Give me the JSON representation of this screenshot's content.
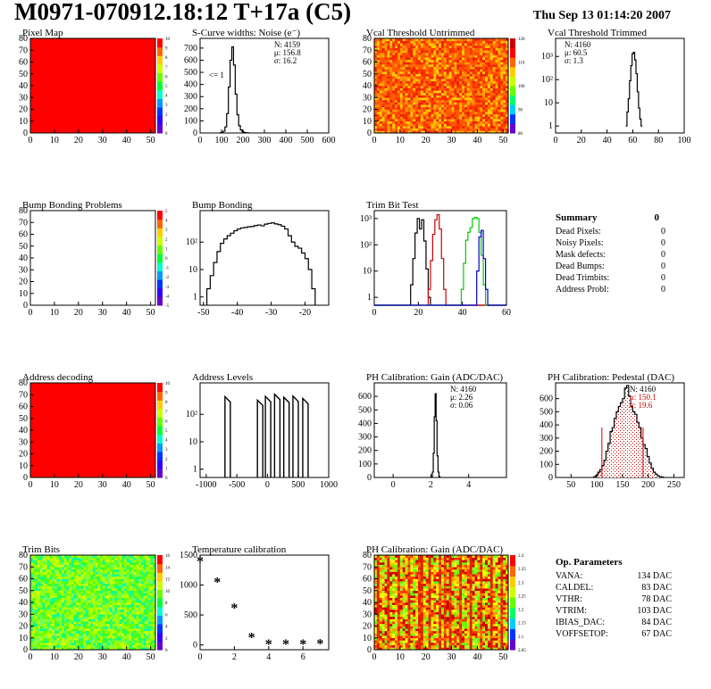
{
  "header": {
    "title": "M0971-070912.18:12 T+17a (C5)",
    "date": "Thu Sep 13 01:14:20 2007"
  },
  "chart_data": [
    {
      "id": "p1",
      "type": "heatmap",
      "title": "Pixel Map",
      "x_ticks": [
        "0",
        "10",
        "20",
        "30",
        "40",
        "50"
      ],
      "y_ticks": [
        "0",
        "10",
        "20",
        "30",
        "40",
        "50",
        "60",
        "70",
        "80"
      ],
      "color_scale": [
        "0",
        "1",
        "2",
        "3",
        "4",
        "5",
        "6",
        "7",
        "8",
        "9",
        "10"
      ],
      "fill_color": "#ff0000",
      "uniform_value": 10
    },
    {
      "id": "p2",
      "type": "bar",
      "title": "S-Curve widths: Noise (e⁻)",
      "x_ticks": [
        "0",
        "100",
        "200",
        "300",
        "400",
        "500",
        "600"
      ],
      "y_ticks": [
        "0",
        "100",
        "200",
        "300",
        "400",
        "500",
        "600",
        "700"
      ],
      "xlim": [
        0,
        600
      ],
      "ylim": [
        0,
        780
      ],
      "stats": [
        "N: 4159",
        "μ: 156.8",
        "σ: 16.2"
      ],
      "annotation": "<= 1",
      "bin_width": 8,
      "bins_x": [
        96,
        104,
        112,
        120,
        128,
        136,
        144,
        152,
        160,
        168,
        176,
        184,
        192,
        200,
        208,
        216,
        224
      ],
      "bins_y": [
        2,
        6,
        15,
        50,
        160,
        380,
        600,
        710,
        560,
        320,
        150,
        60,
        25,
        10,
        4,
        2,
        1
      ]
    },
    {
      "id": "p3",
      "type": "heatmap",
      "title": "Vcal Threshold Untrimmed",
      "x_ticks": [
        "0",
        "10",
        "20",
        "30",
        "40",
        "50"
      ],
      "y_ticks": [
        "0",
        "10",
        "20",
        "30",
        "40",
        "50",
        "60",
        "70",
        "80"
      ],
      "color_scale": [
        "80",
        "90",
        "100",
        "110",
        "120"
      ]
    },
    {
      "id": "p4",
      "type": "line",
      "log_y": true,
      "title": "Vcal Threshold Trimmed",
      "x_ticks": [
        "0",
        "20",
        "40",
        "60",
        "80",
        "100"
      ],
      "y_ticks": [
        "1",
        "10",
        "10²",
        "10³"
      ],
      "xlim": [
        0,
        100
      ],
      "stats": [
        "N: 4160",
        "μ: 60.5",
        "σ: 1.3"
      ],
      "bins_x": [
        55,
        56,
        57,
        58,
        59,
        60,
        61,
        62,
        63,
        64,
        65,
        66,
        67
      ],
      "bins_y": [
        1,
        4,
        15,
        90,
        400,
        1300,
        1500,
        700,
        180,
        30,
        6,
        2,
        1
      ]
    },
    {
      "id": "p5",
      "type": "heatmap",
      "title": "Bump Bonding Problems",
      "x_ticks": [
        "0",
        "10",
        "20",
        "30",
        "40",
        "50"
      ],
      "y_ticks": [
        "0",
        "10",
        "20",
        "30",
        "40",
        "50",
        "60",
        "70",
        "80"
      ],
      "color_scale": [
        "-5",
        "-4",
        "-3",
        "-2",
        "-1",
        "0",
        "1",
        "2",
        "3",
        "4",
        "5"
      ],
      "uniform_value": 0
    },
    {
      "id": "p6",
      "type": "line",
      "log_y": true,
      "title": "Bump Bonding",
      "x_ticks": [
        "-50",
        "-40",
        "-30",
        "-20"
      ],
      "y_ticks": [
        "1",
        "10",
        "10²"
      ],
      "xlim": [
        -51,
        -13
      ],
      "bins_x": [
        -48.5,
        -47.5,
        -46.5,
        -45.5,
        -44.5,
        -43.5,
        -42.5,
        -41.5,
        -40.5,
        -39.5,
        -38.5,
        -37.5,
        -36.5,
        -35.5,
        -34.5,
        -33.5,
        -32.5,
        -31.5,
        -30.5,
        -29.5,
        -28.5,
        -27.5,
        -26.5,
        -25.5,
        -24.5,
        -23.5,
        -22.5,
        -21.5,
        -20.5,
        -19.5,
        -18.5,
        -17.5
      ],
      "bins_y": [
        2,
        6,
        18,
        45,
        90,
        130,
        170,
        210,
        260,
        300,
        330,
        340,
        360,
        370,
        400,
        420,
        390,
        450,
        480,
        500,
        460,
        430,
        380,
        300,
        170,
        100,
        70,
        60,
        40,
        25,
        10,
        2
      ]
    },
    {
      "id": "p7",
      "type": "line",
      "log_y": true,
      "title": "Trim Bit Test",
      "x_ticks": [
        "0",
        "20",
        "40",
        "60"
      ],
      "y_ticks": [
        "1",
        "10",
        "10²",
        "10³"
      ],
      "xlim": [
        0,
        60
      ],
      "series": [
        {
          "color": "#000000",
          "x": [
            17,
            18,
            19,
            20,
            21,
            22,
            23,
            24,
            25
          ],
          "y": [
            3,
            30,
            280,
            1000,
            400,
            900,
            140,
            12,
            1
          ]
        },
        {
          "color": "#cc0000",
          "x": [
            25,
            26,
            27,
            28,
            29,
            30,
            31,
            32
          ],
          "y": [
            2,
            25,
            250,
            900,
            1400,
            400,
            30,
            2
          ]
        },
        {
          "color": "#00cc00",
          "x": [
            40,
            41,
            42,
            43,
            44,
            45,
            46,
            47,
            48,
            49,
            50
          ],
          "y": [
            2,
            20,
            150,
            300,
            450,
            1000,
            1100,
            1000,
            300,
            40,
            3
          ]
        },
        {
          "color": "#0000cc",
          "x": [
            47,
            48,
            49,
            50,
            51
          ],
          "y": [
            10,
            200,
            350,
            30,
            2
          ]
        }
      ]
    },
    {
      "id": "p8",
      "type": "line",
      "log_y": true,
      "title": "Address Levels",
      "x_ticks": [
        "-1000",
        "-500",
        "0",
        "500",
        "1000"
      ],
      "y_ticks": [
        "1",
        "10",
        "10²"
      ],
      "xlim": [
        -1100,
        1000
      ],
      "peaks_x": [
        -650,
        -120,
        10,
        160,
        310,
        460,
        620
      ],
      "peaks_y": [
        440,
        330,
        450,
        540,
        420,
        460,
        380
      ]
    },
    {
      "id": "p9",
      "type": "bar",
      "title": "PH Calibration: Gain (ADC/DAC)",
      "x_ticks": [
        "0",
        "2",
        "4"
      ],
      "y_ticks": [
        "0",
        "100",
        "200",
        "300",
        "400",
        "500",
        "600"
      ],
      "xlim": [
        -1,
        6
      ],
      "ylim": [
        0,
        700
      ],
      "stats": [
        "N: 4160",
        "μ: 2.26",
        "σ: 0.06"
      ],
      "bin_width": 0.05,
      "bins_x": [
        2.05,
        2.1,
        2.15,
        2.2,
        2.25,
        2.3,
        2.35,
        2.4,
        2.45
      ],
      "bins_y": [
        5,
        40,
        180,
        450,
        620,
        420,
        160,
        40,
        8
      ]
    },
    {
      "id": "p10",
      "type": "bar",
      "title": "PH Calibration: Pedestal (DAC)",
      "x_ticks": [
        "50",
        "100",
        "150",
        "200",
        "250"
      ],
      "y_ticks": [
        "0",
        "100",
        "200",
        "300",
        "400",
        "500",
        "600"
      ],
      "xlim": [
        20,
        270
      ],
      "ylim": [
        0,
        720
      ],
      "stats": [
        "N: 4160",
        "μ: 150.1",
        "σ: 19.6"
      ],
      "stats_colors": [
        "#000000",
        "#d00000",
        "#d00000"
      ],
      "fit_lines": [
        110,
        190
      ],
      "bin_width": 4,
      "bins_x": [
        96,
        100,
        104,
        108,
        112,
        116,
        120,
        124,
        128,
        132,
        136,
        140,
        144,
        148,
        152,
        156,
        160,
        164,
        168,
        172,
        176,
        180,
        184,
        188,
        192,
        196,
        200,
        204,
        208,
        212,
        216,
        220,
        224,
        228
      ],
      "bins_y": [
        5,
        15,
        40,
        60,
        90,
        130,
        200,
        260,
        350,
        380,
        450,
        500,
        540,
        570,
        600,
        680,
        700,
        620,
        540,
        500,
        480,
        420,
        380,
        300,
        250,
        220,
        160,
        110,
        70,
        40,
        25,
        12,
        6,
        3
      ]
    },
    {
      "id": "p11",
      "type": "heatmap",
      "title": "Trim Bits",
      "x_ticks": [
        "0",
        "10",
        "20",
        "30",
        "40",
        "50"
      ],
      "y_ticks": [
        "0",
        "10",
        "20",
        "30",
        "40",
        "50",
        "60",
        "70",
        "80"
      ],
      "color_scale": [
        "0",
        "2",
        "4",
        "6",
        "8",
        "10",
        "12",
        "14",
        "16"
      ]
    },
    {
      "id": "p12",
      "type": "scatter",
      "title": "Temperature calibration",
      "x_ticks": [
        "0",
        "2",
        "4",
        "6"
      ],
      "y_ticks": [
        "0",
        "500",
        "1000",
        "1500"
      ],
      "xlim": [
        0,
        7.5
      ],
      "ylim": [
        -80,
        1500
      ],
      "x": [
        0,
        1,
        2,
        3,
        4,
        5,
        6,
        7
      ],
      "y": [
        1380,
        1030,
        600,
        110,
        -5,
        -5,
        -5,
        5
      ]
    },
    {
      "id": "p13",
      "type": "heatmap",
      "title": "PH Calibration: Gain (ADC/DAC)",
      "x_ticks": [
        "0",
        "10",
        "20",
        "30",
        "40",
        "50"
      ],
      "y_ticks": [
        "0",
        "10",
        "20",
        "30",
        "40",
        "50",
        "60",
        "70",
        "80"
      ],
      "color_scale": [
        "2.05",
        "2.1",
        "2.15",
        "2.2",
        "2.25",
        "2.3",
        "2.35",
        "2.4"
      ]
    }
  ],
  "summary": {
    "title": "Summary",
    "value": "0",
    "rows": [
      {
        "label": "Dead Pixels:",
        "value": "0"
      },
      {
        "label": "Noisy Pixels:",
        "value": "0"
      },
      {
        "label": "Mask defects:",
        "value": "0"
      },
      {
        "label": "Dead Bumps:",
        "value": "0"
      },
      {
        "label": "Dead Trimbits:",
        "value": "0"
      },
      {
        "label": "Address Probl:",
        "value": "0"
      }
    ]
  },
  "op_params": {
    "title": "Op. Parameters",
    "rows": [
      {
        "label": "VANA:",
        "value": "134 DAC"
      },
      {
        "label": "CALDEL:",
        "value": "83 DAC"
      },
      {
        "label": "VTHR:",
        "value": "78 DAC"
      },
      {
        "label": "VTRIM:",
        "value": "103 DAC"
      },
      {
        "label": "IBIAS_DAC:",
        "value": "84 DAC"
      },
      {
        "label": "VOFFSETOP:",
        "value": "67 DAC"
      }
    ]
  }
}
